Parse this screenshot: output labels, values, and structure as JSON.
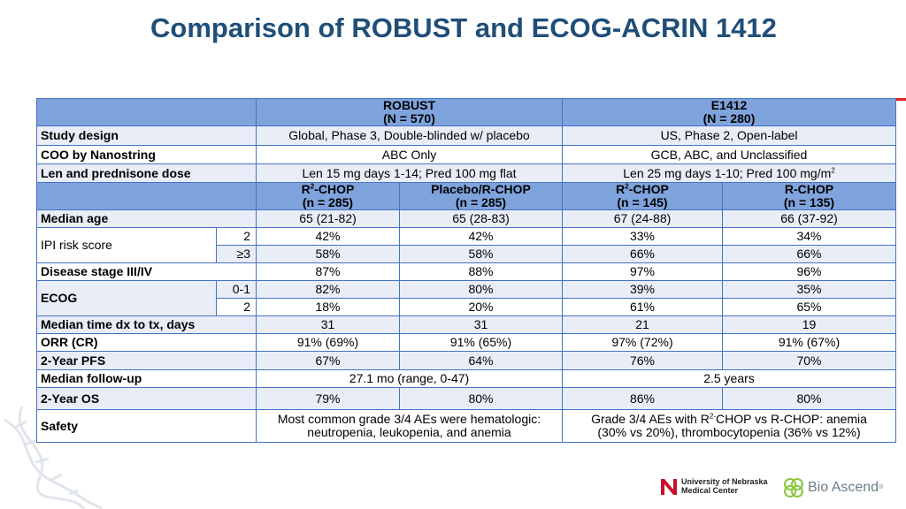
{
  "title": "Comparison of ROBUST and ECOG-ACRIN 1412",
  "header1": {
    "robust": "ROBUST",
    "robust_n": "(N = 570)",
    "e1412": "E1412",
    "e1412_n": "(N = 280)"
  },
  "rows_top": {
    "study_design": {
      "label": "Study design",
      "robust": "Global, Phase 3, Double-blinded w/ placebo",
      "e1412": "US, Phase 2, Open-label"
    },
    "coo": {
      "label": "COO by Nanostring",
      "robust": "ABC Only",
      "e1412": "GCB, ABC, and Unclassified"
    },
    "len_dose": {
      "label": "Len and prednisone dose",
      "robust": "Len 15 mg days 1-14; Pred 100 mg flat",
      "e1412_main": "Len 25 mg days 1-10; Pred 100 mg/m",
      "e1412_sup": "2"
    }
  },
  "header2": {
    "arm1_name": "R",
    "arm1_sup": "2",
    "arm1_rest": "-CHOP",
    "arm1_n": "(n = 285)",
    "arm2_name": "Placebo/R-CHOP",
    "arm2_n": "(n = 285)",
    "arm3_name": "R",
    "arm3_sup": "2",
    "arm3_rest": "-CHOP",
    "arm3_n": "(n = 145)",
    "arm4_name": "R-CHOP",
    "arm4_n": "(n = 135)"
  },
  "rows": {
    "median_age": {
      "label": "Median age",
      "v": [
        "65 (21-82)",
        "65 (28-83)",
        "67 (24-88)",
        "66 (37-92)"
      ]
    },
    "ipi": {
      "label": "IPI risk score",
      "sub1": "2",
      "v1": [
        "42%",
        "42%",
        "33%",
        "34%"
      ],
      "sub2": "≥3",
      "v2": [
        "58%",
        "58%",
        "66%",
        "66%"
      ]
    },
    "stage": {
      "label": "Disease stage III/IV",
      "v": [
        "87%",
        "88%",
        "97%",
        "96%"
      ]
    },
    "ecog": {
      "label": "ECOG",
      "sub1": "0-1",
      "v1": [
        "82%",
        "80%",
        "39%",
        "35%"
      ],
      "sub2": "2",
      "v2": [
        "18%",
        "20%",
        "61%",
        "65%"
      ]
    },
    "median_time": {
      "label": "Median time dx to tx, days",
      "v": [
        "31",
        "31",
        "21",
        "19"
      ]
    },
    "orr": {
      "label": "ORR (CR)",
      "v": [
        "91% (69%)",
        "91% (65%)",
        "97% (72%)",
        "91% (67%)"
      ]
    },
    "pfs": {
      "label": "2-Year PFS",
      "v": [
        "67%",
        "64%",
        "76%",
        "70%"
      ]
    },
    "followup": {
      "label": "Median follow-up",
      "robust": "27.1 mo (range, 0-47)",
      "e1412": "2.5 years"
    },
    "os": {
      "label": "2-Year OS",
      "v": [
        "79%",
        "80%",
        "86%",
        "80%"
      ]
    },
    "safety": {
      "label": "Safety",
      "robust_line1": "Most common grade 3/4 AEs were hematologic:",
      "robust_line2": "neutropenia, leukopenia, and anemia",
      "e1412_pre": "Grade 3/4 AEs with R",
      "e1412_sup": "2-",
      "e1412_post": "CHOP vs R-CHOP: anemia",
      "e1412_line2": "(30% vs 20%), thrombocytopenia (36% vs 12%)"
    }
  },
  "logos": {
    "unmc_line1": "University of Nebraska",
    "unmc_line2": "Medical Center",
    "bioascend": "Bio Ascend",
    "bioascend_mark": "®"
  },
  "colors": {
    "title": "#1f4e79",
    "header_bg": "#7fa3dc",
    "alt_row": "#e9edf7",
    "border": "#4472c4",
    "accent_red": "#e0202a"
  }
}
